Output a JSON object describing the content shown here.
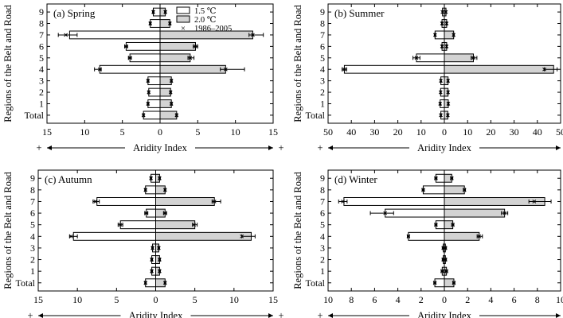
{
  "figure": {
    "y_axis_label": "Regions of the Belt and Road",
    "x_axis_label": "Aridity Index",
    "x_axis_end_symbols": [
      "+",
      "+"
    ],
    "legend": [
      {
        "name": "1.5 ℃",
        "fill": "#ffffff"
      },
      {
        "name": "2.0 ℃",
        "fill": "#d3d3d3"
      },
      {
        "name": "1986–2005",
        "marker": "×"
      }
    ],
    "colors": {
      "bar_15": "#ffffff",
      "bar_20": "#d3d3d3",
      "stroke": "#000000"
    }
  },
  "chart_data": [
    {
      "type": "bar",
      "orientation": "horizontal-back-to-back",
      "title": "(a) Spring",
      "categories": [
        "Total",
        "1",
        "2",
        "3",
        "4",
        "5",
        "6",
        "7",
        "8",
        "9"
      ],
      "x_ticks": [
        "15",
        "10",
        "5",
        "0",
        "5",
        "10",
        "15"
      ],
      "xlim": [
        -15,
        15
      ],
      "legend_position": "top",
      "series": [
        {
          "name": "1.5 ℃",
          "side": "left",
          "values": [
            2.2,
            1.6,
            1.5,
            1.6,
            8.0,
            4.0,
            4.5,
            12.0,
            1.3,
            0.9
          ],
          "err_low": [
            2.3,
            1.7,
            1.6,
            1.7,
            8.7,
            4.2,
            4.7,
            13.5,
            1.4,
            1.0
          ],
          "err_high": [
            2.1,
            1.5,
            1.4,
            1.5,
            7.8,
            3.8,
            4.3,
            11.0,
            1.2,
            0.8
          ],
          "marker": [
            2.2,
            1.6,
            1.5,
            1.6,
            8.0,
            4.0,
            4.5,
            12.5,
            1.3,
            0.9
          ]
        },
        {
          "name": "2.0 ℃",
          "side": "right",
          "values": [
            2.2,
            1.5,
            1.4,
            1.5,
            8.7,
            4.0,
            4.7,
            12.3,
            1.3,
            0.7
          ],
          "err_low": [
            2.1,
            1.4,
            1.3,
            1.4,
            8.0,
            3.7,
            4.4,
            11.8,
            1.2,
            0.6
          ],
          "err_high": [
            2.3,
            1.6,
            1.5,
            1.6,
            11.2,
            4.5,
            5.0,
            13.7,
            1.4,
            0.8
          ],
          "marker": [
            2.2,
            1.5,
            1.4,
            1.5,
            8.7,
            4.0,
            4.7,
            12.3,
            1.3,
            0.7
          ]
        }
      ]
    },
    {
      "type": "bar",
      "orientation": "horizontal-back-to-back",
      "title": "(b) Summer",
      "categories": [
        "Total",
        "1",
        "2",
        "3",
        "4",
        "5",
        "6",
        "7",
        "8",
        "9"
      ],
      "x_ticks": [
        "50",
        "40",
        "30",
        "20",
        "10",
        "0",
        "10",
        "20",
        "30",
        "40",
        "50"
      ],
      "xlim": [
        -50,
        50
      ],
      "series": [
        {
          "name": "1.5 ℃",
          "side": "left",
          "values": [
            1.5,
            1.8,
            1.6,
            1.5,
            43.0,
            12.0,
            1.0,
            4.0,
            1.0,
            0.8
          ],
          "err_low": [
            1.7,
            2.0,
            1.8,
            1.7,
            44.0,
            13.5,
            1.2,
            4.3,
            1.2,
            0.9
          ],
          "err_high": [
            1.3,
            1.6,
            1.4,
            1.3,
            42.0,
            10.5,
            0.8,
            3.7,
            0.8,
            0.7
          ],
          "marker": [
            1.5,
            1.8,
            1.6,
            1.5,
            43.0,
            12.0,
            1.0,
            4.0,
            1.0,
            0.8
          ]
        },
        {
          "name": "2.0 ℃",
          "side": "right",
          "values": [
            1.5,
            1.7,
            1.6,
            1.6,
            47.0,
            12.5,
            1.0,
            4.0,
            1.0,
            0.7
          ],
          "err_low": [
            1.3,
            1.5,
            1.4,
            1.4,
            43.0,
            11.5,
            0.8,
            3.7,
            0.8,
            0.6
          ],
          "err_high": [
            1.7,
            1.9,
            1.8,
            1.8,
            48.5,
            14.0,
            1.2,
            4.3,
            1.2,
            0.8
          ],
          "marker": [
            1.5,
            1.7,
            1.6,
            1.6,
            43.0,
            12.5,
            1.0,
            4.0,
            1.0,
            0.7
          ]
        }
      ]
    },
    {
      "type": "bar",
      "orientation": "horizontal-back-to-back",
      "title": "(c) Autumn",
      "categories": [
        "Total",
        "1",
        "2",
        "3",
        "4",
        "5",
        "6",
        "7",
        "8",
        "9"
      ],
      "x_ticks": [
        "15",
        "10",
        "5",
        "0",
        "5",
        "10",
        "15"
      ],
      "xlim": [
        -15,
        15
      ],
      "series": [
        {
          "name": "1.5 ℃",
          "side": "left",
          "values": [
            1.3,
            0.5,
            0.5,
            0.4,
            10.5,
            4.5,
            1.2,
            7.5,
            1.3,
            0.6
          ],
          "err_low": [
            1.4,
            0.6,
            0.6,
            0.5,
            11.0,
            4.8,
            1.4,
            8.0,
            1.4,
            0.7
          ],
          "err_high": [
            1.2,
            0.4,
            0.4,
            0.3,
            10.0,
            4.2,
            1.0,
            7.2,
            1.2,
            0.5
          ],
          "marker": [
            1.3,
            0.5,
            0.5,
            0.4,
            10.8,
            4.5,
            1.2,
            7.7,
            1.3,
            0.6
          ]
        },
        {
          "name": "2.0 ℃",
          "side": "right",
          "values": [
            1.2,
            0.5,
            0.5,
            0.4,
            12.2,
            5.0,
            1.2,
            7.5,
            1.2,
            0.5
          ],
          "err_low": [
            1.1,
            0.4,
            0.4,
            0.3,
            11.0,
            4.7,
            1.0,
            7.2,
            1.1,
            0.4
          ],
          "err_high": [
            1.3,
            0.6,
            0.6,
            0.5,
            12.7,
            5.3,
            1.4,
            8.3,
            1.3,
            0.6
          ],
          "marker": [
            1.2,
            0.5,
            0.5,
            0.4,
            11.0,
            4.9,
            1.2,
            7.5,
            1.2,
            0.5
          ]
        }
      ]
    },
    {
      "type": "bar",
      "orientation": "horizontal-back-to-back",
      "title": "(d) Winter",
      "categories": [
        "Total",
        "1",
        "2",
        "3",
        "4",
        "5",
        "6",
        "7",
        "8",
        "9"
      ],
      "x_ticks": [
        "10",
        "8",
        "6",
        "4",
        "2",
        "0",
        "2",
        "4",
        "6",
        "8",
        "10"
      ],
      "xlim": [
        -11,
        11
      ],
      "series": [
        {
          "name": "1.5 ℃",
          "side": "left",
          "values": [
            0.9,
            0.2,
            0.1,
            0.1,
            3.4,
            0.8,
            5.6,
            9.5,
            2.0,
            0.8
          ],
          "err_low": [
            1.0,
            0.3,
            0.2,
            0.2,
            3.5,
            0.9,
            7.0,
            10.0,
            2.1,
            0.9
          ],
          "err_high": [
            0.8,
            0.1,
            0.1,
            0.1,
            3.3,
            0.7,
            4.8,
            9.2,
            1.9,
            0.7
          ],
          "marker": [
            0.9,
            0.2,
            0.1,
            0.1,
            3.4,
            0.8,
            5.6,
            9.6,
            2.0,
            0.8
          ]
        },
        {
          "name": "2.0 ℃",
          "side": "right",
          "values": [
            0.9,
            0.2,
            0.1,
            0.1,
            3.3,
            0.8,
            5.7,
            9.5,
            1.9,
            0.7
          ],
          "err_low": [
            0.8,
            0.1,
            0.1,
            0.1,
            3.1,
            0.7,
            5.4,
            8.0,
            1.8,
            0.6
          ],
          "err_high": [
            1.0,
            0.3,
            0.2,
            0.2,
            3.6,
            0.9,
            6.0,
            10.1,
            2.0,
            0.8
          ],
          "marker": [
            0.9,
            0.2,
            0.1,
            0.1,
            3.3,
            0.8,
            5.7,
            8.5,
            1.9,
            0.7
          ]
        }
      ]
    }
  ]
}
